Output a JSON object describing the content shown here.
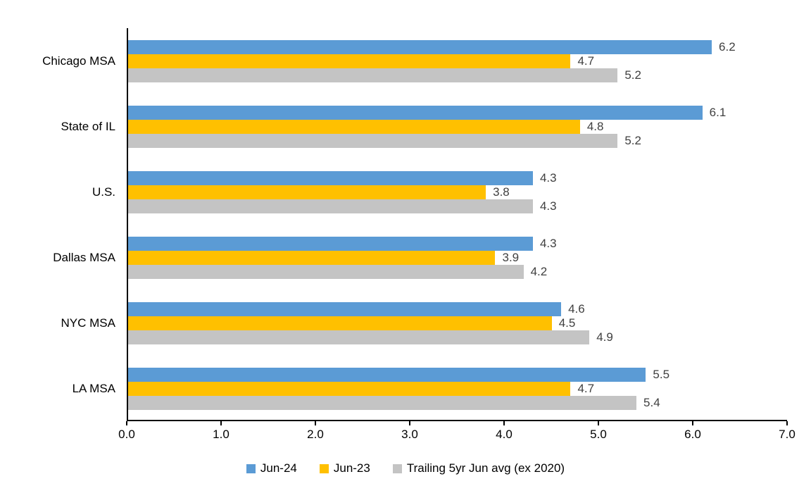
{
  "chart_data": {
    "type": "bar",
    "orientation": "horizontal",
    "title": "",
    "xlabel": "",
    "ylabel": "",
    "xlim": [
      0.0,
      7.0
    ],
    "x_tick_step": 1.0,
    "x_tick_labels": [
      "0.0",
      "1.0",
      "2.0",
      "3.0",
      "4.0",
      "5.0",
      "6.0",
      "7.0"
    ],
    "grid": false,
    "legend_position": "bottom-center",
    "categories": [
      "Chicago MSA",
      "State of IL",
      "U.S.",
      "Dallas MSA",
      "NYC MSA",
      "LA MSA"
    ],
    "series": [
      {
        "name": "Jun-24",
        "color": "#5B9BD5",
        "values": [
          6.2,
          6.1,
          4.3,
          4.3,
          4.6,
          5.5
        ]
      },
      {
        "name": "Jun-23",
        "color": "#FFC000",
        "values": [
          4.7,
          4.8,
          3.8,
          3.9,
          4.5,
          4.7
        ]
      },
      {
        "name": "Trailing 5yr Jun avg (ex 2020)",
        "color": "#C4C4C4",
        "values": [
          5.2,
          5.2,
          4.3,
          4.2,
          4.9,
          5.4
        ]
      }
    ],
    "data_labels_shown": true,
    "data_label_color": "#404040",
    "axis_color": "#000000"
  }
}
